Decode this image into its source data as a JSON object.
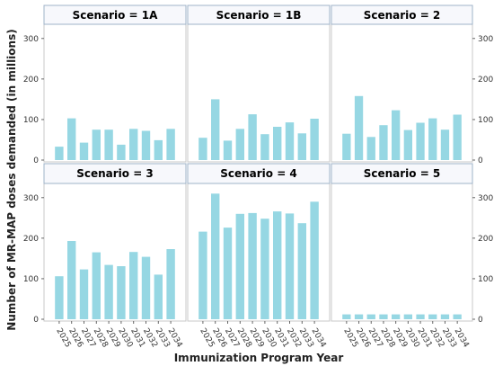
{
  "chart_data": {
    "type": "bar",
    "xlabel": "Immunization Program Year",
    "ylabel": "Number of MR-MAP doses demanded (in millions)",
    "ylim": [
      0,
      335
    ],
    "yticks": [
      0,
      100,
      200,
      300
    ],
    "categories": [
      "2025",
      "2026",
      "2027",
      "2028",
      "2029",
      "2030",
      "2031",
      "2032",
      "2033",
      "2034"
    ],
    "series": [
      {
        "name": "Scenario = 1A",
        "values": [
          33,
          103,
          43,
          75,
          75,
          38,
          77,
          72,
          49,
          77
        ]
      },
      {
        "name": "Scenario = 1B",
        "values": [
          55,
          150,
          48,
          77,
          113,
          64,
          82,
          93,
          66,
          102
        ]
      },
      {
        "name": "Scenario = 2",
        "values": [
          65,
          158,
          57,
          86,
          123,
          74,
          92,
          103,
          75,
          112
        ]
      },
      {
        "name": "Scenario = 3",
        "values": [
          106,
          193,
          123,
          165,
          134,
          131,
          166,
          154,
          110,
          173
        ]
      },
      {
        "name": "Scenario = 4",
        "values": [
          216,
          310,
          226,
          260,
          262,
          248,
          266,
          261,
          237,
          290
        ]
      },
      {
        "name": "Scenario = 5",
        "values": [
          12,
          12,
          12,
          12,
          12,
          12,
          12,
          12,
          12,
          12
        ]
      }
    ],
    "bar_color": "#96d7e3",
    "grid": false,
    "legend": "none"
  }
}
